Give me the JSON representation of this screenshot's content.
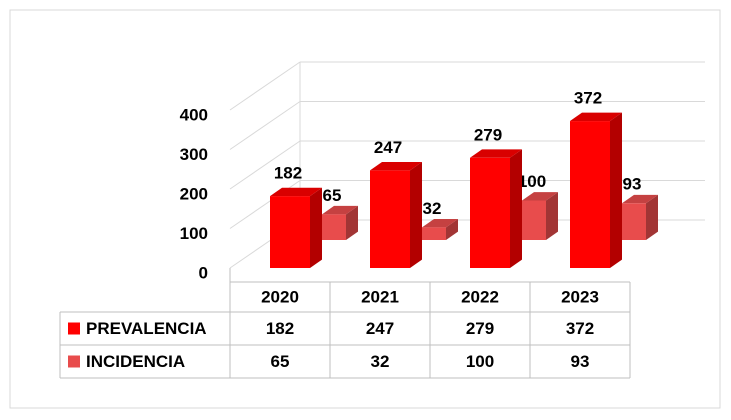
{
  "chart_data": {
    "type": "bar3d",
    "categories": [
      "2020",
      "2021",
      "2022",
      "2023"
    ],
    "series": [
      {
        "name": "PREVALENCIA",
        "color": "#ff0000",
        "values": [
          182,
          247,
          279,
          372
        ]
      },
      {
        "name": "INCIDENCIA",
        "color": "#e84c4c",
        "values": [
          65,
          32,
          100,
          93
        ]
      }
    ],
    "ylim": [
      0,
      400
    ],
    "yticks": [
      0,
      100,
      200,
      300,
      400
    ],
    "grid": true,
    "data_table": true
  }
}
